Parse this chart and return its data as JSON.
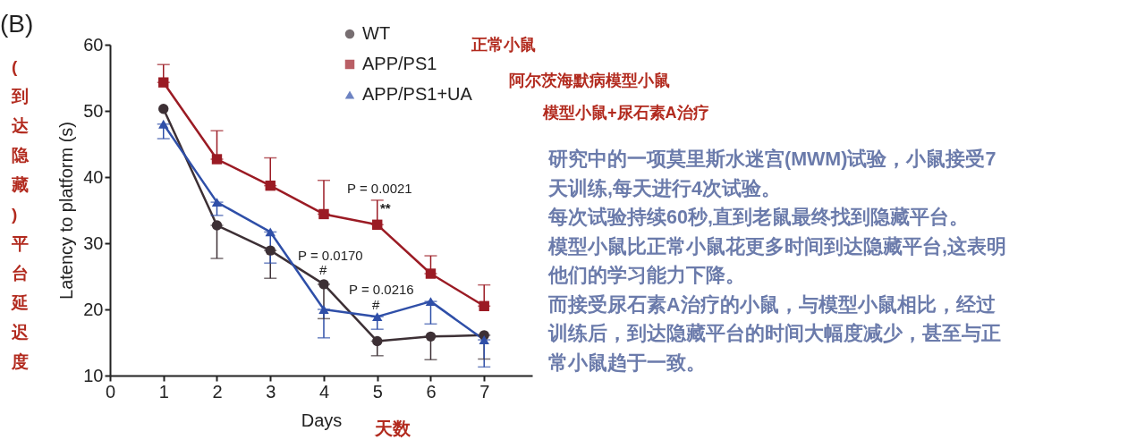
{
  "chart_data": {
    "type": "line",
    "xlabel": "Days",
    "ylabel": "Latency to platform (s)",
    "xlim": [
      0,
      7.9
    ],
    "ylim": [
      10,
      60
    ],
    "xticks": [
      0,
      1,
      2,
      3,
      4,
      5,
      6,
      7
    ],
    "yticks": [
      10,
      20,
      30,
      40,
      50,
      60
    ],
    "x": [
      1,
      2,
      3,
      4,
      5,
      6,
      7
    ],
    "grid": false,
    "legend": "top right",
    "line_style": "solid",
    "series": [
      {
        "name": "WT",
        "color": "#3d3035",
        "marker": "circle",
        "values": [
          50.3,
          32.7,
          28.9,
          23.8,
          15.2,
          15.9,
          16.1
        ],
        "errors": [
          null,
          [
            27.7,
            32.7
          ],
          [
            24.7,
            28.9
          ],
          [
            18.6,
            23.8
          ],
          [
            13,
            15.2
          ],
          [
            12.4,
            15.9
          ],
          [
            12.5,
            16.1
          ]
        ]
      },
      {
        "name": "APP/PS1",
        "color": "#9b1b24",
        "marker": "square",
        "values": [
          54.3,
          42.7,
          38.7,
          34.4,
          32.8,
          25.4,
          20.5
        ],
        "errors": [
          [
            54.3,
            57
          ],
          [
            42.7,
            47
          ],
          [
            38.7,
            42.9
          ],
          [
            34.4,
            39.5
          ],
          [
            32.8,
            36.5
          ],
          [
            25.4,
            28.1
          ],
          [
            20.5,
            23.7
          ]
        ]
      },
      {
        "name": "APP/PS1+UA",
        "color": "#2f4fa8",
        "marker": "triangle",
        "values": [
          48,
          36.2,
          31.7,
          20,
          18.9,
          21.2,
          15.4
        ],
        "errors": [
          [
            45.8,
            48
          ],
          [
            34.2,
            36.2
          ],
          [
            27,
            31.7
          ],
          [
            15.7,
            20
          ],
          [
            17,
            18.9
          ],
          [
            17.8,
            21.2
          ],
          [
            11.3,
            15.4
          ]
        ]
      }
    ],
    "annotations": [
      "P = 0.0021",
      "**",
      "P = 0.0170",
      "#",
      "P = 0.0216",
      "#",
      "(B)",
      "正常小鼠",
      "阿尔茨海默病模型小鼠",
      "模型小鼠+尿石素A治疗",
      "(到达隐藏)平台延迟度",
      "天数",
      "研究中的一项莫里斯水迷宫(MWM)试验，小鼠接受7",
      "天训练,每天进行4次试验。",
      "每次试验持续60秒,直到老鼠最终找到隐藏平台。",
      "模型小鼠比正常小鼠花更多时间到达隐藏平台,这表明",
      "他们的学习能力下降。",
      "而接受尿石素A治疗的小鼠，与模型小鼠相比，经过",
      "训练后，到达隐藏平台的时间大幅度减少，甚至与正",
      "常小鼠趋于一致。"
    ]
  }
}
